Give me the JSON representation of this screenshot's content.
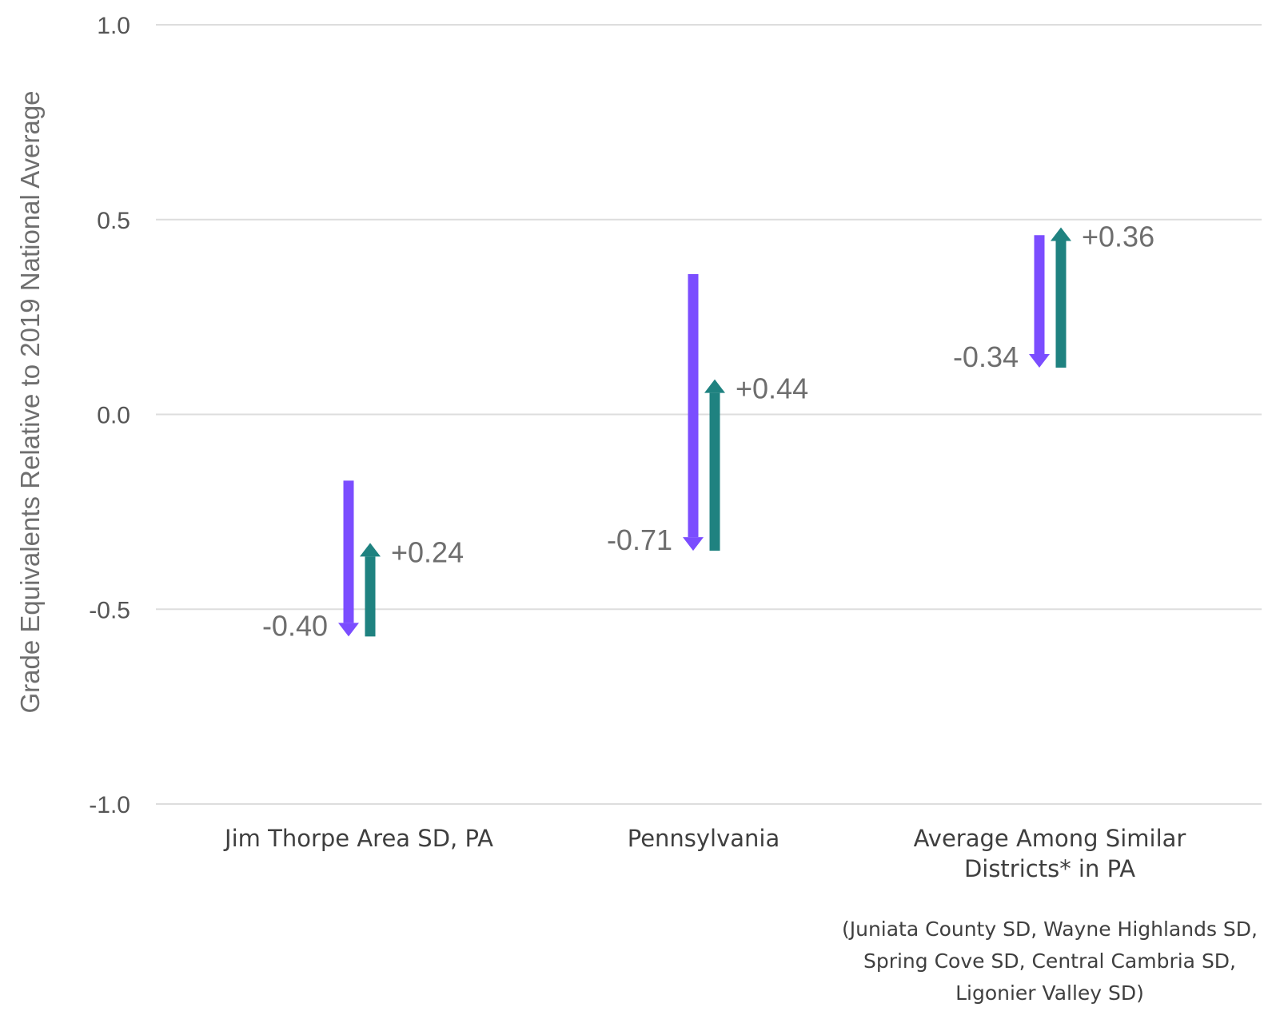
{
  "chart_data": {
    "type": "arrow",
    "title": "",
    "ylabel": "Grade Equivalents Relative to 2019 National Average",
    "xlabel": "",
    "ylim": [
      -1.0,
      1.0
    ],
    "yticks": [
      1.0,
      0.5,
      0.0,
      -0.5,
      -1.0
    ],
    "ytick_labels": [
      "1.0",
      "0.5",
      "0.0",
      "-0.5",
      "-1.0"
    ],
    "grid": true,
    "categories": [
      "Jim Thorpe Area SD, PA",
      "Pennsylvania",
      "Average Among Similar Districts* in PA"
    ],
    "category_label_lines": [
      [
        "Jim Thorpe Area SD, PA"
      ],
      [
        "Pennsylvania"
      ],
      [
        "Average Among Similar",
        "Districts* in PA"
      ]
    ],
    "note_lines": [
      "(Juniata County SD, Wayne Highlands SD,",
      "Spring Cove SD, Central Cambria SD,",
      "Ligonier Valley SD)"
    ],
    "series": [
      {
        "color": "#7b4dff",
        "direction": "down",
        "from": [
          -0.17,
          0.36,
          0.46
        ],
        "to": [
          -0.57,
          -0.35,
          0.12
        ],
        "labels": [
          "-0.40",
          "-0.71",
          "-0.34"
        ]
      },
      {
        "color": "#1f8280",
        "direction": "up",
        "from": [
          -0.57,
          -0.35,
          0.12
        ],
        "to": [
          -0.33,
          0.09,
          0.48
        ],
        "labels": [
          "+0.24",
          "+0.44",
          "+0.36"
        ]
      }
    ]
  }
}
